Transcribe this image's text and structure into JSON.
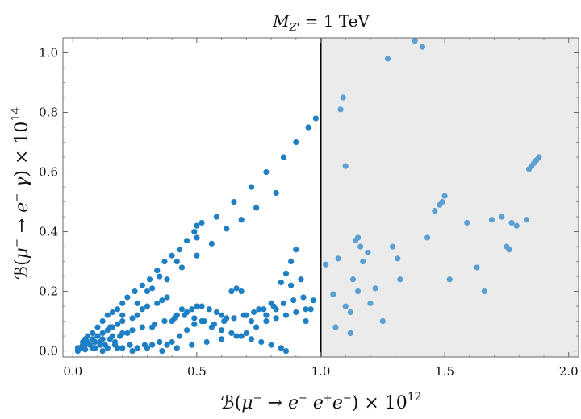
{
  "chart_data": {
    "type": "scatter",
    "title": "M_Z' = 1 TeV",
    "xlabel": "ℬ(μ⁻ → e⁻ e⁺ e⁻) × 10¹²",
    "ylabel": "ℬ(μ⁻ → e⁻ γ) × 10¹⁴",
    "xlim": [
      -0.04,
      2.04
    ],
    "ylim": [
      -0.02,
      1.05
    ],
    "xticks": [
      0.0,
      0.5,
      1.0,
      1.5,
      2.0
    ],
    "xtick_labels": [
      "0.0",
      "0.5",
      "1.0",
      "1.5",
      "2.0"
    ],
    "yticks": [
      0.0,
      0.2,
      0.4,
      0.6,
      0.8,
      1.0
    ],
    "ytick_labels": [
      "0.0",
      "0.2",
      "0.4",
      "0.6",
      "0.8",
      "1.0"
    ],
    "vline_x": 1.0,
    "shaded_region": {
      "x_from": 1.0,
      "x_to": 2.04,
      "color": "#ebebeb"
    },
    "grid": false,
    "colors": {
      "allowed": "#1f7fc4",
      "excluded": "#5aa0d2",
      "frame": "#666666"
    },
    "points": [
      [
        0.02,
        0.0
      ],
      [
        0.03,
        0.01
      ],
      [
        0.04,
        0.02
      ],
      [
        0.05,
        0.005
      ],
      [
        0.06,
        0.03
      ],
      [
        0.07,
        0.02
      ],
      [
        0.08,
        0.04
      ],
      [
        0.09,
        0.01
      ],
      [
        0.1,
        0.05
      ],
      [
        0.11,
        0.03
      ],
      [
        0.12,
        0.06
      ],
      [
        0.13,
        0.02
      ],
      [
        0.14,
        0.07
      ],
      [
        0.15,
        0.04
      ],
      [
        0.16,
        0.08
      ],
      [
        0.17,
        0.03
      ],
      [
        0.18,
        0.09
      ],
      [
        0.19,
        0.05
      ],
      [
        0.2,
        0.1
      ],
      [
        0.22,
        0.06
      ],
      [
        0.24,
        0.11
      ],
      [
        0.26,
        0.12
      ],
      [
        0.28,
        0.14
      ],
      [
        0.3,
        0.15
      ],
      [
        0.32,
        0.08
      ],
      [
        0.34,
        0.16
      ],
      [
        0.36,
        0.17
      ],
      [
        0.38,
        0.18
      ],
      [
        0.4,
        0.1
      ],
      [
        0.42,
        0.12
      ],
      [
        0.44,
        0.14
      ],
      [
        0.46,
        0.13
      ],
      [
        0.48,
        0.14
      ],
      [
        0.5,
        0.15
      ],
      [
        0.52,
        0.15
      ],
      [
        0.55,
        0.14
      ],
      [
        0.58,
        0.13
      ],
      [
        0.6,
        0.12
      ],
      [
        0.62,
        0.11
      ],
      [
        0.64,
        0.2
      ],
      [
        0.66,
        0.21
      ],
      [
        0.68,
        0.2
      ],
      [
        0.7,
        0.12
      ],
      [
        0.72,
        0.1
      ],
      [
        0.75,
        0.14
      ],
      [
        0.78,
        0.12
      ],
      [
        0.8,
        0.16
      ],
      [
        0.82,
        0.14
      ],
      [
        0.84,
        0.23
      ],
      [
        0.86,
        0.26
      ],
      [
        0.88,
        0.3
      ],
      [
        0.9,
        0.34
      ],
      [
        0.92,
        0.24
      ],
      [
        0.94,
        0.1
      ],
      [
        0.96,
        0.14
      ],
      [
        0.88,
        0.22
      ],
      [
        0.04,
        0.03
      ],
      [
        0.06,
        0.05
      ],
      [
        0.08,
        0.06
      ],
      [
        0.1,
        0.08
      ],
      [
        0.12,
        0.1
      ],
      [
        0.14,
        0.12
      ],
      [
        0.16,
        0.13
      ],
      [
        0.18,
        0.14
      ],
      [
        0.2,
        0.16
      ],
      [
        0.22,
        0.18
      ],
      [
        0.25,
        0.2
      ],
      [
        0.28,
        0.22
      ],
      [
        0.31,
        0.24
      ],
      [
        0.34,
        0.27
      ],
      [
        0.37,
        0.3
      ],
      [
        0.4,
        0.32
      ],
      [
        0.43,
        0.34
      ],
      [
        0.46,
        0.37
      ],
      [
        0.49,
        0.4
      ],
      [
        0.5,
        0.42
      ],
      [
        0.52,
        0.43
      ],
      [
        0.1,
        0.05
      ],
      [
        0.15,
        0.08
      ],
      [
        0.2,
        0.12
      ],
      [
        0.26,
        0.16
      ],
      [
        0.32,
        0.21
      ],
      [
        0.38,
        0.24
      ],
      [
        0.44,
        0.28
      ],
      [
        0.5,
        0.32
      ],
      [
        0.56,
        0.36
      ],
      [
        0.62,
        0.41
      ],
      [
        0.68,
        0.44
      ],
      [
        0.74,
        0.48
      ],
      [
        0.82,
        0.53
      ],
      [
        0.3,
        0.2
      ],
      [
        0.35,
        0.25
      ],
      [
        0.42,
        0.3
      ],
      [
        0.5,
        0.38
      ],
      [
        0.58,
        0.45
      ],
      [
        0.65,
        0.5
      ],
      [
        0.72,
        0.55
      ],
      [
        0.78,
        0.6
      ],
      [
        0.85,
        0.65
      ],
      [
        0.9,
        0.7
      ],
      [
        0.95,
        0.75
      ],
      [
        0.98,
        0.78
      ],
      [
        0.02,
        0.01
      ],
      [
        0.05,
        0.02
      ],
      [
        0.08,
        0.01
      ],
      [
        0.11,
        0.02
      ],
      [
        0.14,
        0.01
      ],
      [
        0.17,
        0.02
      ],
      [
        0.2,
        0.01
      ],
      [
        0.23,
        0.02
      ],
      [
        0.26,
        0.01
      ],
      [
        0.29,
        0.02
      ],
      [
        0.32,
        0.02
      ],
      [
        0.35,
        0.03
      ],
      [
        0.38,
        0.02
      ],
      [
        0.4,
        0.03
      ],
      [
        0.43,
        0.05
      ],
      [
        0.46,
        0.07
      ],
      [
        0.49,
        0.09
      ],
      [
        0.52,
        0.1
      ],
      [
        0.56,
        0.08
      ],
      [
        0.6,
        0.07
      ],
      [
        0.64,
        0.06
      ],
      [
        0.68,
        0.05
      ],
      [
        0.72,
        0.04
      ],
      [
        0.76,
        0.03
      ],
      [
        0.8,
        0.02
      ],
      [
        0.84,
        0.01
      ],
      [
        0.86,
        0.0
      ],
      [
        0.05,
        0.04
      ],
      [
        0.07,
        0.02
      ],
      [
        0.09,
        0.03
      ],
      [
        0.12,
        0.04
      ],
      [
        0.16,
        0.05
      ],
      [
        0.2,
        0.06
      ],
      [
        0.24,
        0.07
      ],
      [
        0.28,
        0.08
      ],
      [
        0.33,
        0.09
      ],
      [
        0.37,
        0.1
      ],
      [
        0.41,
        0.11
      ],
      [
        0.45,
        0.12
      ],
      [
        0.49,
        0.11
      ],
      [
        0.53,
        0.1
      ],
      [
        0.57,
        0.09
      ],
      [
        0.61,
        0.1
      ],
      [
        0.65,
        0.11
      ],
      [
        0.69,
        0.12
      ],
      [
        0.73,
        0.13
      ],
      [
        0.77,
        0.14
      ],
      [
        0.81,
        0.15
      ],
      [
        0.85,
        0.16
      ],
      [
        0.89,
        0.17
      ],
      [
        0.93,
        0.18
      ],
      [
        0.97,
        0.17
      ],
      [
        0.12,
        0.0
      ],
      [
        0.18,
        0.01
      ],
      [
        0.24,
        0.0
      ],
      [
        0.3,
        0.01
      ],
      [
        0.36,
        0.0
      ],
      [
        0.42,
        0.01
      ],
      [
        0.48,
        0.02
      ],
      [
        0.54,
        0.03
      ],
      [
        0.6,
        0.04
      ],
      [
        0.66,
        0.05
      ],
      [
        0.7,
        0.06
      ],
      [
        0.74,
        0.08
      ],
      [
        0.78,
        0.1
      ],
      [
        0.82,
        0.11
      ],
      [
        0.86,
        0.12
      ],
      [
        0.9,
        0.13
      ],
      [
        0.94,
        0.14
      ],
      [
        1.02,
        0.29
      ],
      [
        1.05,
        0.19
      ],
      [
        1.06,
        0.08
      ],
      [
        1.07,
        0.31
      ],
      [
        1.08,
        0.81
      ],
      [
        1.09,
        0.85
      ],
      [
        1.1,
        0.62
      ],
      [
        1.12,
        0.06
      ],
      [
        1.13,
        0.24
      ],
      [
        1.14,
        0.37
      ],
      [
        1.15,
        0.38
      ],
      [
        1.16,
        0.35
      ],
      [
        1.17,
        0.3
      ],
      [
        1.19,
        0.33
      ],
      [
        1.22,
        0.21
      ],
      [
        1.27,
        0.98
      ],
      [
        1.29,
        0.35
      ],
      [
        1.31,
        0.31
      ],
      [
        1.32,
        0.24
      ],
      [
        1.38,
        1.04
      ],
      [
        1.41,
        1.02
      ],
      [
        1.43,
        0.38
      ],
      [
        1.46,
        0.47
      ],
      [
        1.48,
        0.49
      ],
      [
        1.49,
        0.5
      ],
      [
        1.5,
        0.52
      ],
      [
        1.52,
        0.24
      ],
      [
        1.59,
        0.43
      ],
      [
        1.63,
        0.28
      ],
      [
        1.66,
        0.2
      ],
      [
        1.69,
        0.44
      ],
      [
        1.73,
        0.45
      ],
      [
        1.75,
        0.35
      ],
      [
        1.76,
        0.34
      ],
      [
        1.77,
        0.43
      ],
      [
        1.79,
        0.42
      ],
      [
        1.83,
        0.44
      ],
      [
        1.84,
        0.61
      ],
      [
        1.85,
        0.62
      ],
      [
        1.86,
        0.63
      ],
      [
        1.87,
        0.64
      ],
      [
        1.88,
        0.65
      ],
      [
        1.1,
        0.15
      ],
      [
        1.12,
        0.13
      ],
      [
        1.15,
        0.2
      ],
      [
        1.2,
        0.16
      ],
      [
        1.25,
        0.1
      ]
    ]
  }
}
